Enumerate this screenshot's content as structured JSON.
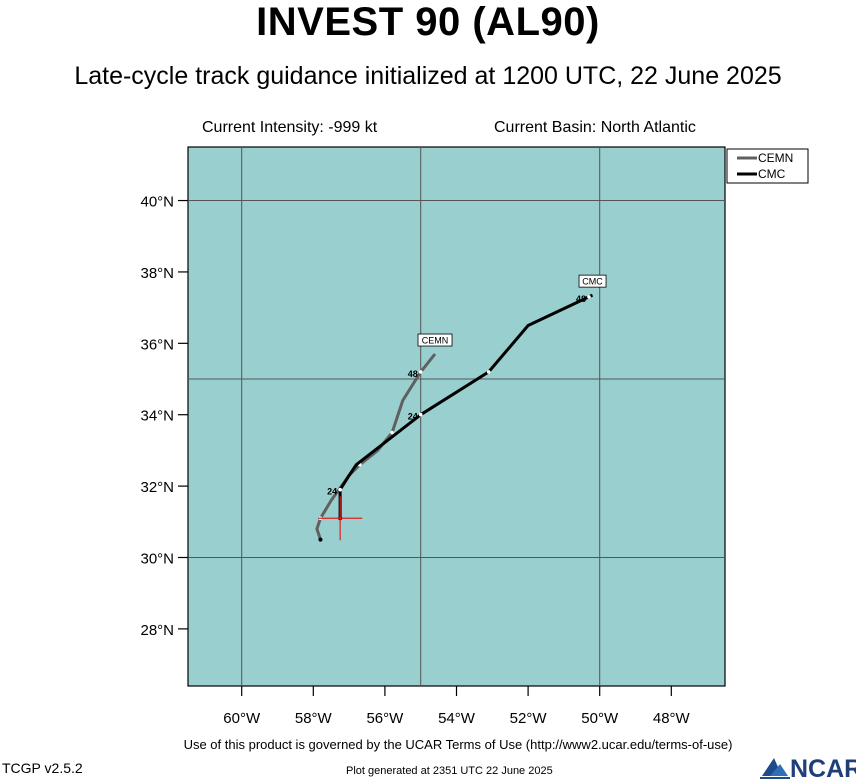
{
  "header": {
    "title": "INVEST 90 (AL90)",
    "subtitle": "Late-cycle track guidance initialized at 1200 UTC, 22 June 2025",
    "current_intensity": "Current Intensity: -999 kt",
    "current_basin": "Current Basin: North Atlantic"
  },
  "map": {
    "ocean_color": "#99cfcf",
    "lon_range": [
      -61.5,
      -46.5
    ],
    "lat_range": [
      26.4,
      41.5
    ],
    "lat_ticks": [
      {
        "value": 28,
        "label": "28°N"
      },
      {
        "value": 30,
        "label": "30°N"
      },
      {
        "value": 32,
        "label": "32°N"
      },
      {
        "value": 34,
        "label": "34°N"
      },
      {
        "value": 36,
        "label": "36°N"
      },
      {
        "value": 38,
        "label": "38°N"
      },
      {
        "value": 40,
        "label": "40°N"
      }
    ],
    "lon_ticks": [
      {
        "value": -60,
        "label": "60°W"
      },
      {
        "value": -58,
        "label": "58°W"
      },
      {
        "value": -56,
        "label": "56°W"
      },
      {
        "value": -54,
        "label": "54°W"
      },
      {
        "value": -52,
        "label": "52°W"
      },
      {
        "value": -50,
        "label": "50°W"
      },
      {
        "value": -48,
        "label": "48°W"
      }
    ],
    "grid_lons": [
      -60,
      -55,
      -50
    ],
    "grid_lats": [
      30,
      35,
      40
    ],
    "current_position": {
      "lon": -57.25,
      "lat": 31.1
    }
  },
  "legend": {
    "entries": [
      {
        "name": "CEMN",
        "color": "#606060"
      },
      {
        "name": "CMC",
        "color": "#000000"
      }
    ]
  },
  "tracks": [
    {
      "name": "CEMN",
      "color": "#606060",
      "label": "CEMN",
      "points": [
        {
          "lon": -57.8,
          "lat": 30.5
        },
        {
          "lon": -57.9,
          "lat": 30.8
        },
        {
          "lon": -57.8,
          "lat": 31.1
        },
        {
          "lon": -57.5,
          "lat": 31.6
        },
        {
          "lon": -57.0,
          "lat": 32.3
        },
        {
          "lon": -56.7,
          "lat": 32.6
        },
        {
          "lon": -56.2,
          "lat": 33.0
        },
        {
          "lon": -55.8,
          "lat": 33.5
        },
        {
          "lon": -55.5,
          "lat": 34.4
        },
        {
          "lon": -55.0,
          "lat": 35.2
        },
        {
          "lon": -54.6,
          "lat": 35.7
        }
      ],
      "hour_marks": [
        {
          "lon": -57.8,
          "lat": 31.1,
          "label": ""
        },
        {
          "lon": -56.7,
          "lat": 32.6,
          "label": ""
        },
        {
          "lon": -55.8,
          "lat": 33.5,
          "label": ""
        },
        {
          "lon": -55.0,
          "lat": 35.2,
          "label": "48"
        }
      ]
    },
    {
      "name": "CMC",
      "color": "#000000",
      "label": "CMC",
      "points": [
        {
          "lon": -57.25,
          "lat": 31.1
        },
        {
          "lon": -57.25,
          "lat": 31.9
        },
        {
          "lon": -57.0,
          "lat": 32.3
        },
        {
          "lon": -56.8,
          "lat": 32.6
        },
        {
          "lon": -55.0,
          "lat": 34.0
        },
        {
          "lon": -53.1,
          "lat": 35.2
        },
        {
          "lon": -52.0,
          "lat": 36.5
        },
        {
          "lon": -50.2,
          "lat": 37.35
        }
      ],
      "hour_marks": [
        {
          "lon": -57.25,
          "lat": 31.9,
          "label": "24"
        },
        {
          "lon": -55.0,
          "lat": 34.0,
          "label": "24"
        },
        {
          "lon": -53.1,
          "lat": 35.2,
          "label": ""
        },
        {
          "lon": -50.3,
          "lat": 37.3,
          "label": "48"
        }
      ]
    }
  ],
  "footer": {
    "terms": "Use of this product is governed by the UCAR Terms of Use (http://www2.ucar.edu/terms-of-use)",
    "version": "TCGP v2.5.2",
    "generated": "Plot generated at 2351 UTC   22 June 2025",
    "logo_text": "NCAR"
  }
}
